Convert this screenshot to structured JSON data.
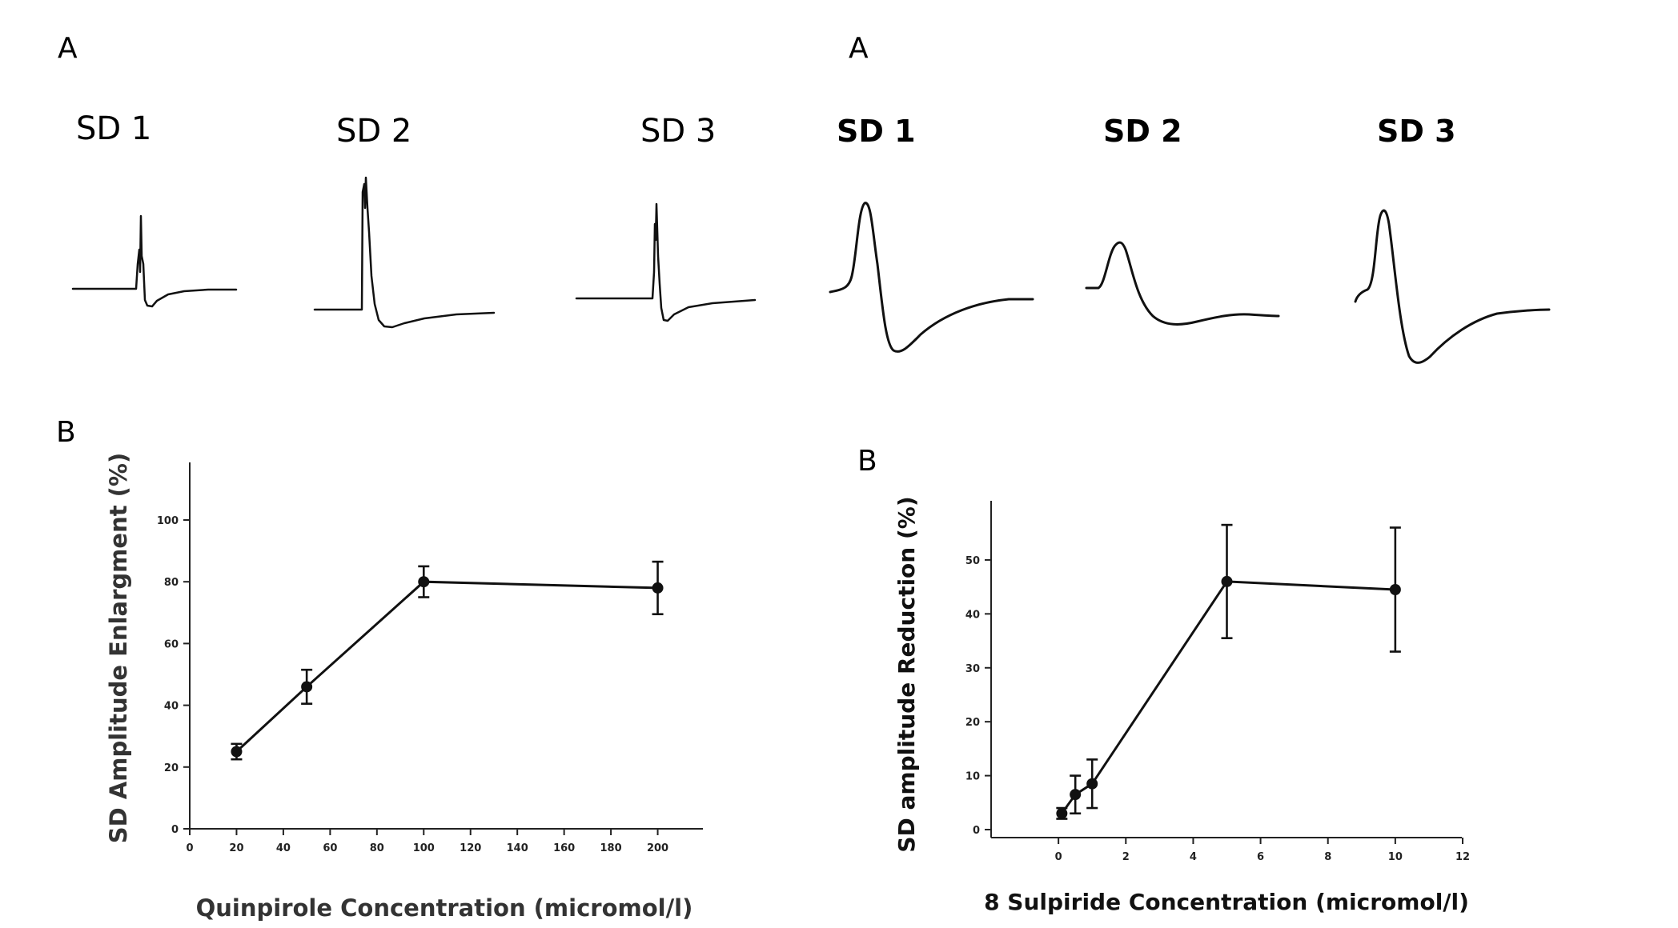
{
  "left": {
    "panel_a_label": "A",
    "panel_b_label": "B",
    "traces": [
      "SD 1",
      "SD 2",
      "SD 3"
    ]
  },
  "right": {
    "panel_a_label": "A",
    "panel_b_label": "B",
    "traces": [
      "SD 1",
      "SD 2",
      "SD 3"
    ]
  },
  "chart_data": [
    {
      "type": "line",
      "title": "",
      "xlabel": "Quinpirole Concentration (micromol/l)",
      "ylabel": "SD  Amplitude Enlargment (%)",
      "xlim": [
        0,
        220
      ],
      "ylim": [
        0,
        100
      ],
      "x_ticks": [
        "0",
        "20",
        "40",
        "60",
        "80",
        "100",
        "120",
        "140",
        "160",
        "180",
        "200"
      ],
      "y_ticks": [
        "0",
        "20",
        "40",
        "60",
        "80",
        "100"
      ],
      "series": [
        {
          "x": [
            20,
            50,
            100,
            200
          ],
          "y": [
            25,
            46,
            80,
            78
          ],
          "error": [
            2.5,
            5.5,
            5,
            8.5
          ]
        }
      ]
    },
    {
      "type": "line",
      "title": "",
      "xlabel": "8 Sulpiride Concentration (micromol/l)",
      "ylabel": "SD  amplitude Reduction (%)",
      "xlim": [
        -2,
        12
      ],
      "ylim": [
        0,
        58
      ],
      "x_ticks": [
        "0",
        "2",
        "4",
        "6",
        "8",
        "10",
        "12"
      ],
      "y_ticks": [
        "0",
        "10",
        "20",
        "30",
        "40",
        "50"
      ],
      "series": [
        {
          "x": [
            0.1,
            0.5,
            1,
            5,
            10
          ],
          "y": [
            3,
            6.5,
            8.5,
            46,
            44.5
          ],
          "error": [
            1,
            3.5,
            4.5,
            10.5,
            11.5
          ]
        }
      ]
    }
  ]
}
